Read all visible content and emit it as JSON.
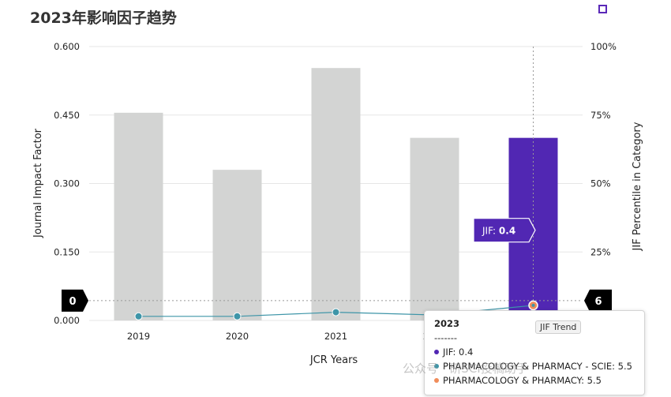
{
  "title": "2023年影响因子趋势",
  "chart_data": {
    "type": "bar",
    "title": "2023年影响因子趋势",
    "xlabel": "JCR Years",
    "ylabel": "Journal Impact Factor",
    "ylabel_right": "JIF Percentile in Category",
    "categories": [
      "2019",
      "2020",
      "2021",
      "2022",
      "2023"
    ],
    "ylim": [
      0,
      0.6
    ],
    "yticks": [
      "0.000",
      "0.150",
      "0.300",
      "0.450",
      "0.600"
    ],
    "y2lim": [
      0,
      100
    ],
    "y2ticks": [
      "0%",
      "25%",
      "50%",
      "75%",
      "100%"
    ],
    "series": [
      {
        "name": "JIF",
        "values": [
          0.455,
          0.33,
          0.553,
          0.4,
          0.4
        ],
        "color_default": "#d3d4d3",
        "color_highlight": "#5127b3"
      },
      {
        "name": "PHARMACOLOGY & PHARMACY - SCIE",
        "axis": "right",
        "values": [
          1.5,
          1.5,
          3,
          2,
          5.5
        ],
        "color": "#3e95a8"
      }
    ],
    "highlight_index": 4,
    "grid": true,
    "crosshair": {
      "left_value": "0",
      "right_value": "6"
    },
    "tooltip": {
      "year": "2023",
      "separator": "-------",
      "rows": [
        {
          "text": "JIF: 0.4",
          "color": "#5127b3"
        },
        {
          "text": "PHARMACOLOGY & PHARMACY - SCIE: 5.5",
          "color": "#3e95a8"
        },
        {
          "text": "PHARMACOLOGY & PHARMACY: 5.5",
          "color": "#f08c5a"
        }
      ]
    },
    "bar_tooltip": {
      "prefix": "JIF: ",
      "value": "0.4"
    },
    "trend_label": "JIF Trend"
  },
  "watermark": "公众号 · 研SCI投稿助手"
}
